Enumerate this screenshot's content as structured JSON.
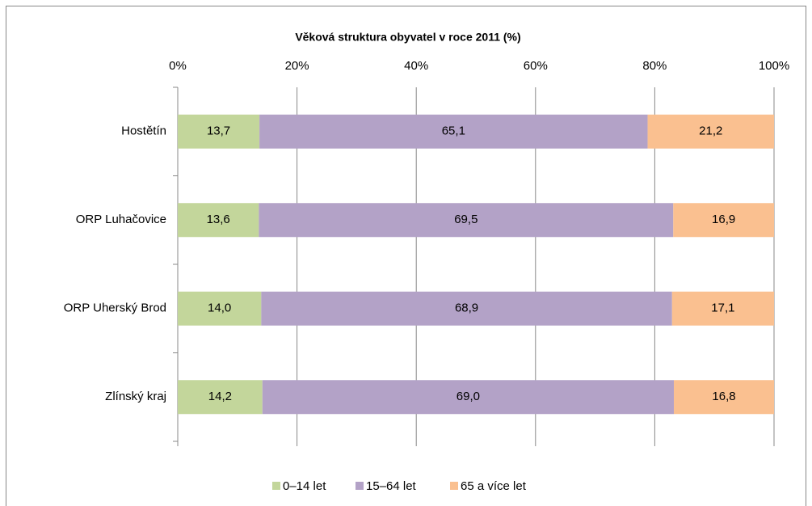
{
  "chart_data": {
    "type": "stacked_barh",
    "title": "Věková struktura obyvatel v roce 2011 (%)",
    "categories": [
      "Hostětín",
      "ORP Luhačovice",
      "ORP Uherský Brod",
      "Zlínský kraj"
    ],
    "series": [
      {
        "name": "0–14 let",
        "color": "#c3d69b",
        "values": [
          13.7,
          13.6,
          14.0,
          14.2
        ],
        "value_labels": [
          "13,7",
          "13,6",
          "14,0",
          "14,2"
        ]
      },
      {
        "name": "15–64 let",
        "color": "#b3a2c7",
        "values": [
          65.1,
          69.5,
          68.9,
          69.0
        ],
        "value_labels": [
          "65,1",
          "69,5",
          "68,9",
          "69,0"
        ]
      },
      {
        "name": "65 a více let",
        "color": "#fac090",
        "values": [
          21.2,
          16.9,
          17.1,
          16.8
        ],
        "value_labels": [
          "21,2",
          "16,9",
          "17,1",
          "16,8"
        ]
      }
    ],
    "xlim": [
      0,
      100
    ],
    "xticks": [
      {
        "value": 0,
        "label": "0%"
      },
      {
        "value": 20,
        "label": "20%"
      },
      {
        "value": 40,
        "label": "40%"
      },
      {
        "value": 60,
        "label": "60%"
      },
      {
        "value": 80,
        "label": "80%"
      },
      {
        "value": 100,
        "label": "100%"
      }
    ],
    "grid": true,
    "legend": "bottom"
  }
}
